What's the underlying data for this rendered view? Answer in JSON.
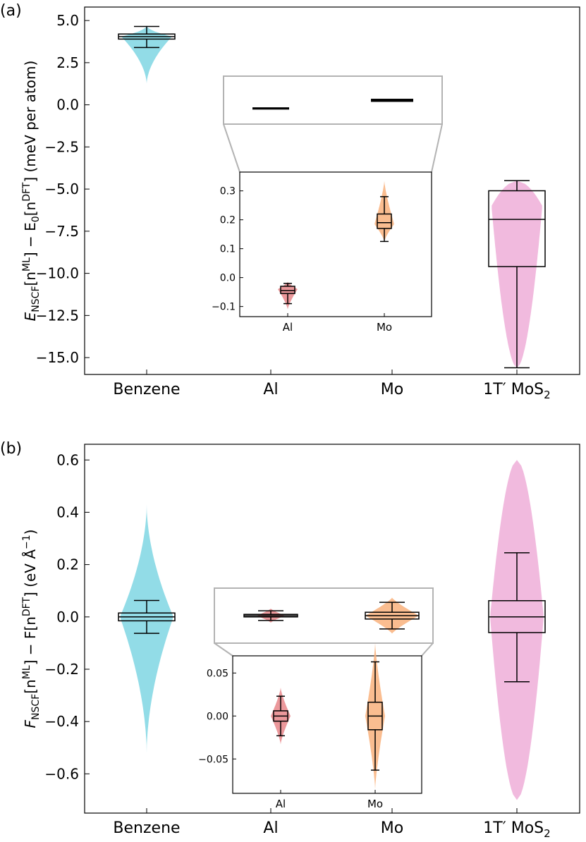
{
  "chart_data": [
    {
      "type": "violin",
      "panel_label": "(a)",
      "ylabel_parts": [
        "E",
        "NSCF",
        "[n",
        "ML",
        "] − E",
        "0",
        "[n",
        "DFT",
        "] (meV per atom)"
      ],
      "categories": [
        "Benzene",
        "Al",
        "Mo",
        "1T′ MoS"
      ],
      "category_subscripts": [
        "",
        "",
        "",
        "2"
      ],
      "colors": [
        "#7fd6e3",
        "#e8868a",
        "#f9b27c",
        "#eeaed8"
      ],
      "ylim": [
        -16.0,
        5.8
      ],
      "yticks": [
        5.0,
        2.5,
        0.0,
        -2.5,
        -5.0,
        -7.5,
        -10.0,
        -12.5,
        -15.0
      ],
      "ytick_labels": [
        "5.0",
        "2.5",
        "0.0",
        "−2.5",
        "−5.0",
        "−7.5",
        "−10.0",
        "−12.5",
        "−15.0"
      ],
      "series": [
        {
          "name": "Benzene",
          "min": 3.4,
          "q1": 3.9,
          "median": 4.05,
          "q3": 4.2,
          "max": 4.65,
          "violin_min": 1.2,
          "violin_max": 4.7,
          "mode": 4.05
        },
        {
          "name": "Al",
          "min": -0.09,
          "q1": -0.055,
          "median": -0.045,
          "q3": -0.03,
          "max": -0.02,
          "violin_min": -0.11,
          "violin_max": -0.015,
          "mode": -0.04
        },
        {
          "name": "Mo",
          "min": 0.125,
          "q1": 0.17,
          "median": 0.19,
          "q3": 0.22,
          "max": 0.28,
          "violin_min": 0.125,
          "violin_max": 0.335,
          "mode": 0.185
        },
        {
          "name": "1T′ MoS2",
          "min": -15.6,
          "q1": -9.6,
          "median": -6.8,
          "q3": -5.1,
          "max": -4.5,
          "violin_min": -15.6,
          "violin_max": -4.5,
          "mode": -6.0
        }
      ],
      "inset": {
        "categories": [
          "Al",
          "Mo"
        ],
        "ylim": [
          -0.135,
          0.365
        ],
        "yticks": [
          0.3,
          0.2,
          0.1,
          0.0,
          -0.1
        ],
        "ytick_labels": [
          "0.3",
          "0.2",
          "0.1",
          "0.0",
          "−0.1"
        ]
      }
    },
    {
      "type": "violin",
      "panel_label": "(b)",
      "ylabel_parts": [
        "F",
        "NSCF",
        "[n",
        "ML",
        "] − F[n",
        "DFT",
        "] (eV Å",
        "−1",
        ")"
      ],
      "categories": [
        "Benzene",
        "Al",
        "Mo",
        "1T′ MoS"
      ],
      "category_subscripts": [
        "",
        "",
        "",
        "2"
      ],
      "colors": [
        "#7fd6e3",
        "#e8868a",
        "#f9b27c",
        "#eeaed8"
      ],
      "ylim": [
        -0.75,
        0.66
      ],
      "yticks": [
        0.6,
        0.4,
        0.2,
        0.0,
        -0.2,
        -0.4,
        -0.6
      ],
      "ytick_labels": [
        "0.6",
        "0.4",
        "0.2",
        "0.0",
        "−0.2",
        "−0.4",
        "−0.6"
      ],
      "series": [
        {
          "name": "Benzene",
          "min": -0.063,
          "q1": -0.015,
          "median": 0.0,
          "q3": 0.015,
          "max": 0.063,
          "violin_min": -0.52,
          "violin_max": 0.43,
          "mode": 0.0
        },
        {
          "name": "Al",
          "min": -0.023,
          "q1": -0.006,
          "median": 0.0,
          "q3": 0.006,
          "max": 0.023,
          "violin_min": -0.033,
          "violin_max": 0.033,
          "mode": 0.0
        },
        {
          "name": "Mo",
          "min": -0.063,
          "q1": -0.016,
          "median": 0.0,
          "q3": 0.016,
          "max": 0.063,
          "violin_min": -0.085,
          "violin_max": 0.085,
          "mode": 0.0
        },
        {
          "name": "1T′ MoS2",
          "min": -0.248,
          "q1": -0.06,
          "median": 0.0,
          "q3": 0.062,
          "max": 0.245,
          "violin_min": -0.7,
          "violin_max": 0.6,
          "mode": 0.0
        }
      ],
      "inset": {
        "categories": [
          "Al",
          "Mo"
        ],
        "ylim": [
          -0.09,
          0.07
        ],
        "yticks": [
          0.05,
          0.0,
          -0.05
        ],
        "ytick_labels": [
          "0.05",
          "0.00",
          "−0.05"
        ]
      }
    }
  ]
}
